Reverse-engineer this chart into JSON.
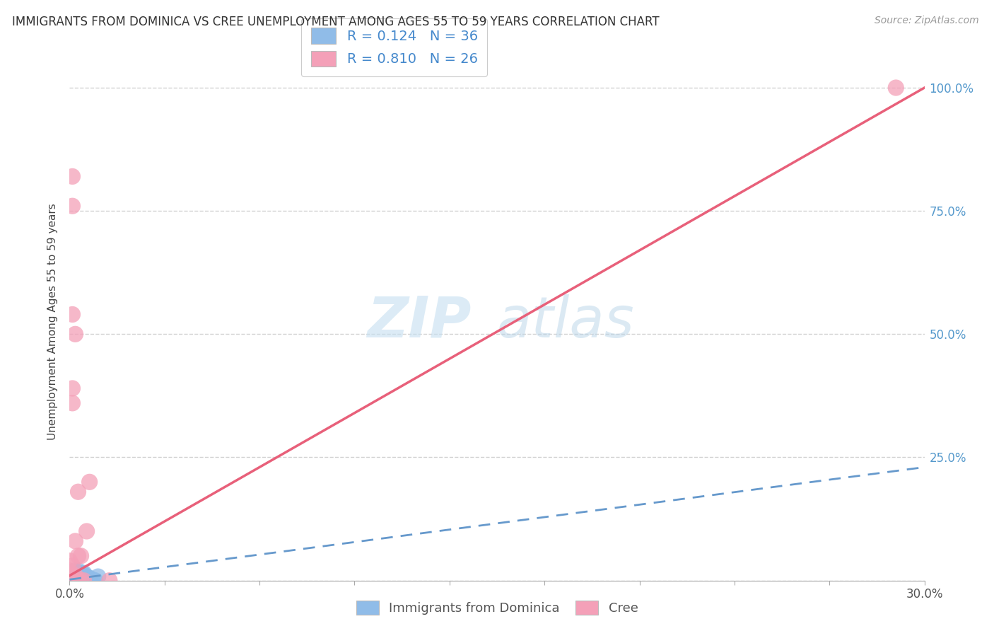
{
  "title": "IMMIGRANTS FROM DOMINICA VS CREE UNEMPLOYMENT AMONG AGES 55 TO 59 YEARS CORRELATION CHART",
  "source": "Source: ZipAtlas.com",
  "ylabel_label": "Unemployment Among Ages 55 to 59 years",
  "watermark_zip": "ZIP",
  "watermark_atlas": "atlas",
  "xlim": [
    0.0,
    0.3
  ],
  "ylim": [
    0.0,
    1.05
  ],
  "x_tick_left": "0.0%",
  "x_tick_right": "30.0%",
  "y_ticks": [
    0.0,
    0.25,
    0.5,
    0.75,
    1.0
  ],
  "y_tick_labels": [
    "",
    "25.0%",
    "50.0%",
    "75.0%",
    "100.0%"
  ],
  "dominica_color": "#90bce8",
  "dominica_edge_color": "#5599cc",
  "cree_color": "#f4a0b8",
  "cree_edge_color": "#e06080",
  "dominica_line_color": "#6699cc",
  "cree_line_color": "#e8607a",
  "background_color": "#ffffff",
  "grid_color": "#cccccc",
  "legend_R1": "R = 0.124",
  "legend_N1": "N = 36",
  "legend_R2": "R = 0.810",
  "legend_N2": "N = 26",
  "legend_label1": "Immigrants from Dominica",
  "legend_label2": "Cree",
  "dominica_scatter": [
    [
      0.0,
      0.0
    ],
    [
      0.001,
      0.002
    ],
    [
      0.002,
      0.01
    ],
    [
      0.0,
      0.008
    ],
    [
      0.001,
      0.015
    ],
    [
      0.002,
      0.005
    ],
    [
      0.0,
      0.003
    ],
    [
      0.003,
      0.0
    ],
    [
      0.001,
      0.005
    ],
    [
      0.002,
      0.02
    ],
    [
      0.001,
      0.0
    ],
    [
      0.0,
      0.01
    ],
    [
      0.003,
      0.008
    ],
    [
      0.004,
      0.003
    ],
    [
      0.002,
      0.012
    ],
    [
      0.001,
      0.018
    ],
    [
      0.0,
      0.006
    ],
    [
      0.003,
      0.015
    ],
    [
      0.005,
      0.0
    ],
    [
      0.002,
      0.008
    ],
    [
      0.004,
      0.01
    ],
    [
      0.001,
      0.003
    ],
    [
      0.0,
      0.0
    ],
    [
      0.006,
      0.005
    ],
    [
      0.003,
      0.02
    ],
    [
      0.005,
      0.012
    ],
    [
      0.007,
      0.003
    ],
    [
      0.004,
      0.0
    ],
    [
      0.002,
      0.0
    ],
    [
      0.006,
      0.008
    ],
    [
      0.008,
      0.002
    ],
    [
      0.003,
      0.01
    ],
    [
      0.005,
      0.015
    ],
    [
      0.007,
      0.005
    ],
    [
      0.009,
      0.0
    ],
    [
      0.01,
      0.008
    ]
  ],
  "cree_scatter": [
    [
      0.001,
      0.82
    ],
    [
      0.001,
      0.76
    ],
    [
      0.001,
      0.54
    ],
    [
      0.002,
      0.5
    ],
    [
      0.001,
      0.39
    ],
    [
      0.001,
      0.36
    ],
    [
      0.0,
      0.01
    ],
    [
      0.001,
      0.005
    ],
    [
      0.0,
      0.0
    ],
    [
      0.002,
      0.0
    ],
    [
      0.003,
      0.0
    ],
    [
      0.0,
      0.02
    ],
    [
      0.001,
      0.03
    ],
    [
      0.002,
      0.01
    ],
    [
      0.003,
      0.05
    ],
    [
      0.004,
      0.0
    ],
    [
      0.002,
      0.08
    ],
    [
      0.003,
      0.18
    ],
    [
      0.0,
      0.04
    ],
    [
      0.001,
      0.0
    ],
    [
      0.007,
      0.2
    ],
    [
      0.005,
      0.0
    ],
    [
      0.004,
      0.05
    ],
    [
      0.006,
      0.1
    ],
    [
      0.29,
      1.0
    ],
    [
      0.014,
      0.0
    ]
  ],
  "dom_trend_x": [
    0.0,
    0.3
  ],
  "dom_trend_y": [
    0.002,
    0.23
  ],
  "cree_trend_x": [
    0.0,
    0.3
  ],
  "cree_trend_y": [
    0.01,
    1.0
  ]
}
